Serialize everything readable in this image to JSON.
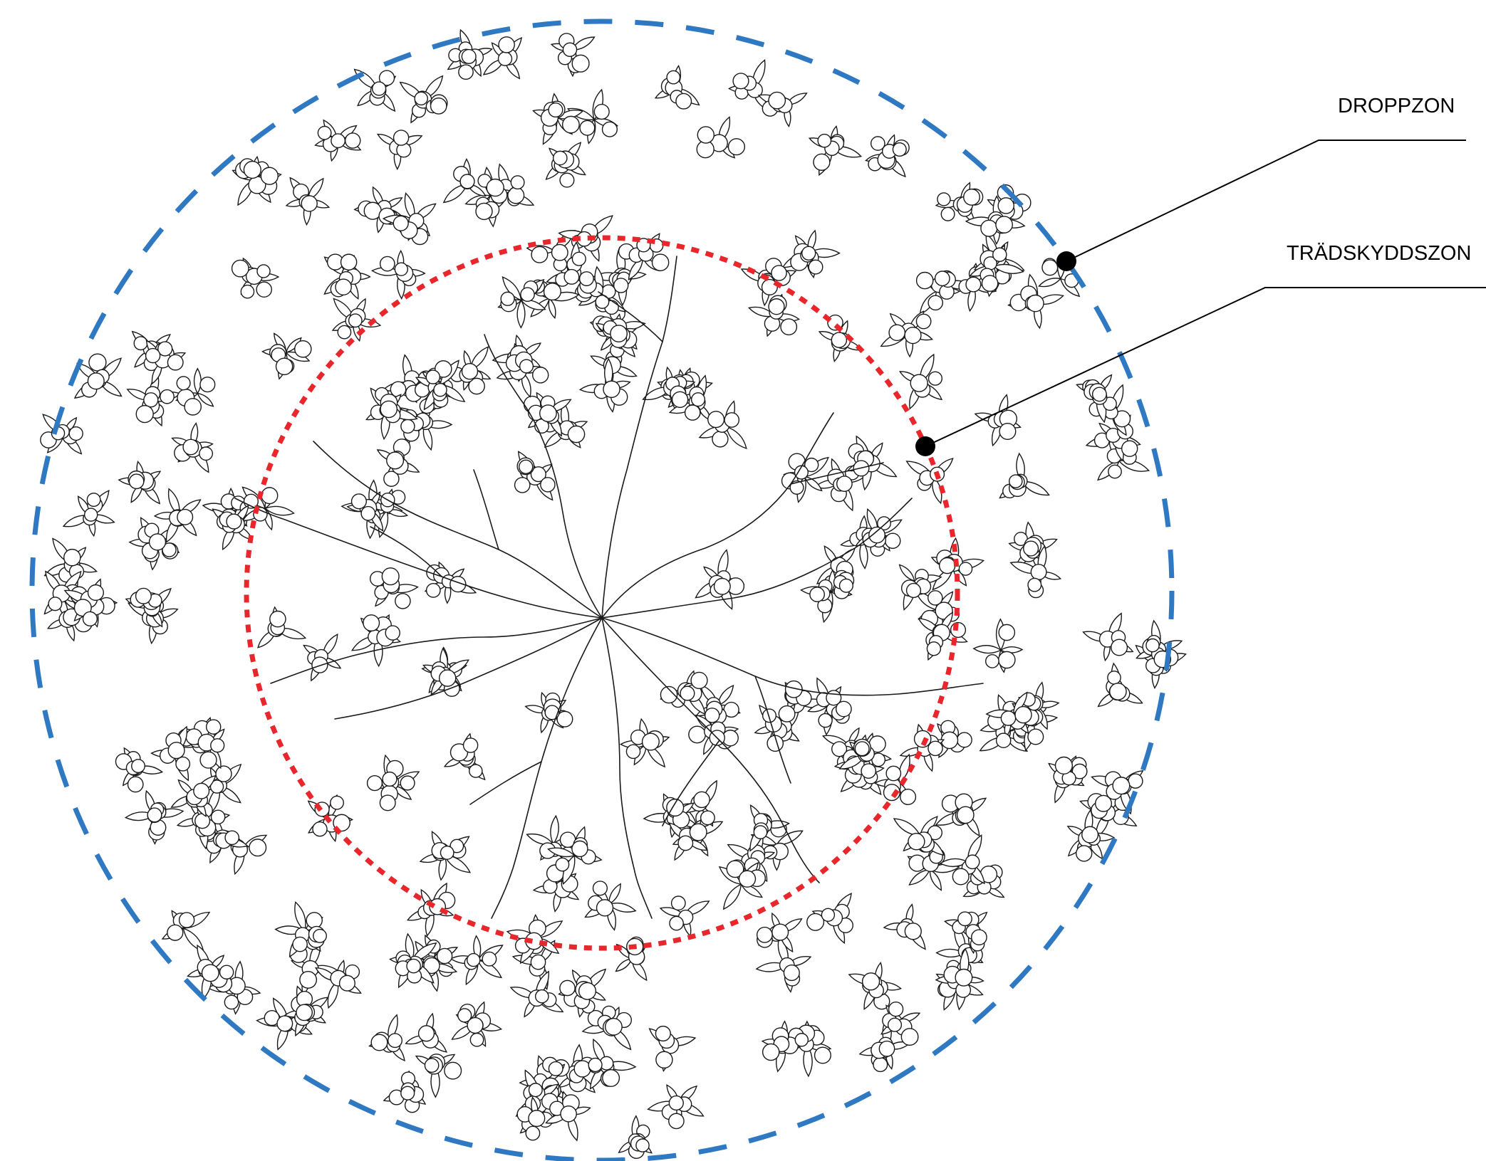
{
  "labels": {
    "dripline": "DROPPZON",
    "protection_zone": "TRÄDSKYDDSZON"
  },
  "colors": {
    "dripline": "#2f78c2",
    "protection_zone": "#e8262b",
    "linework": "#1a1a1a",
    "background": "#ffffff"
  }
}
